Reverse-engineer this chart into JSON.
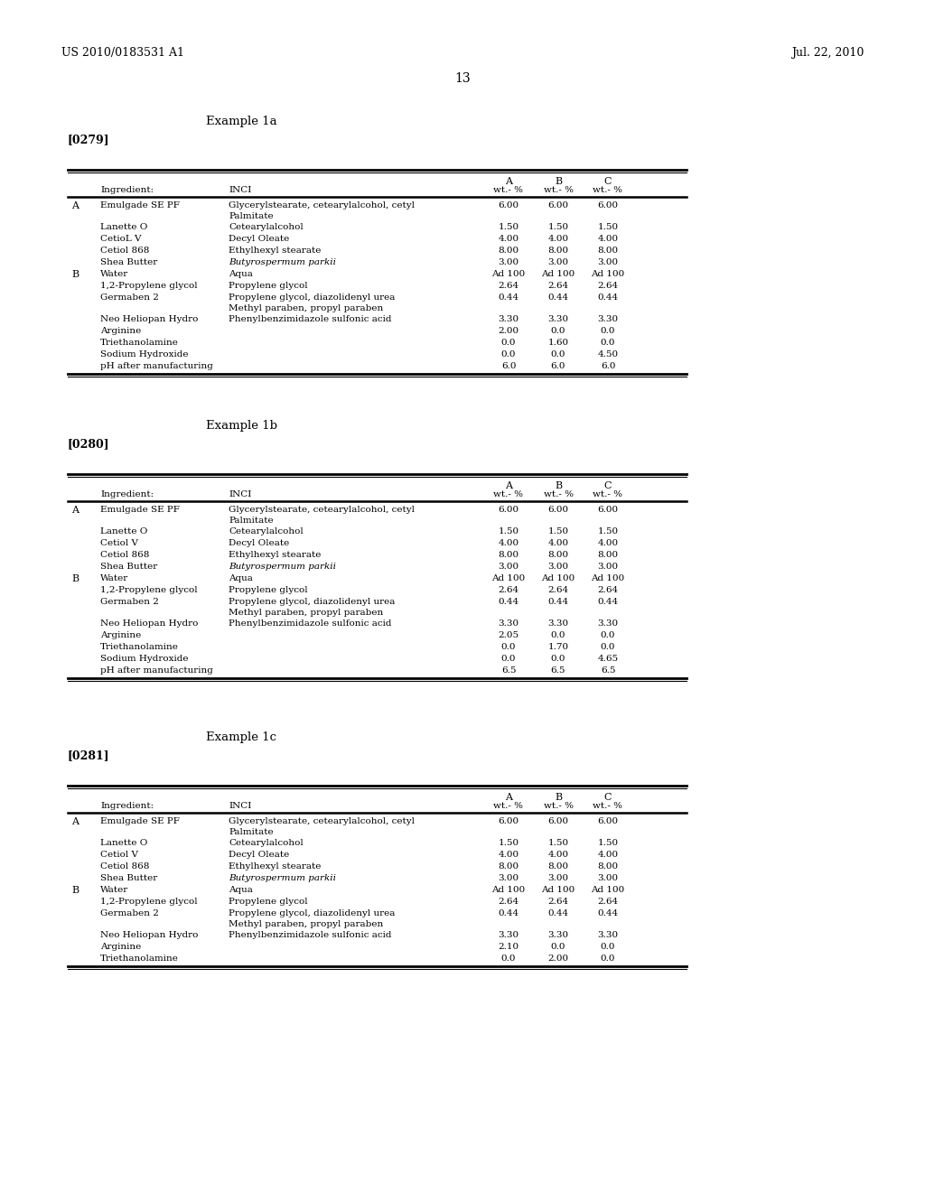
{
  "header_left": "US 2010/0183531 A1",
  "header_right": "Jul. 22, 2010",
  "page_number": "13",
  "examples": [
    {
      "title": "Example 1a",
      "ref": "[0279]",
      "rows": [
        {
          "phase": "A",
          "ingredient": "Emulgade SE PF",
          "inci": "Glycerylstearate, cetearylalcohol, cetyl",
          "inci2": "Palmitate",
          "italic": false,
          "A": "6.00",
          "B": "6.00",
          "C": "6.00"
        },
        {
          "phase": "",
          "ingredient": "Lanette O",
          "inci": "Cetearylalcohol",
          "inci2": "",
          "italic": false,
          "A": "1.50",
          "B": "1.50",
          "C": "1.50"
        },
        {
          "phase": "",
          "ingredient": "CetioL V",
          "inci": "Decyl Oleate",
          "inci2": "",
          "italic": false,
          "A": "4.00",
          "B": "4.00",
          "C": "4.00"
        },
        {
          "phase": "",
          "ingredient": "Cetiol 868",
          "inci": "Ethylhexyl stearate",
          "inci2": "",
          "italic": false,
          "A": "8.00",
          "B": "8.00",
          "C": "8.00"
        },
        {
          "phase": "",
          "ingredient": "Shea Butter",
          "inci": "Butyrospermum parkii",
          "inci2": "",
          "italic": true,
          "A": "3.00",
          "B": "3.00",
          "C": "3.00"
        },
        {
          "phase": "B",
          "ingredient": "Water",
          "inci": "Aqua",
          "inci2": "",
          "italic": false,
          "A": "Ad 100",
          "B": "Ad 100",
          "C": "Ad 100"
        },
        {
          "phase": "",
          "ingredient": "1,2-Propylene glycol",
          "inci": "Propylene glycol",
          "inci2": "",
          "italic": false,
          "A": "2.64",
          "B": "2.64",
          "C": "2.64"
        },
        {
          "phase": "",
          "ingredient": "Germaben 2",
          "inci": "Propylene glycol, diazolidenyl urea",
          "inci2": "Methyl paraben, propyl paraben",
          "italic": false,
          "A": "0.44",
          "B": "0.44",
          "C": "0.44"
        },
        {
          "phase": "",
          "ingredient": "Neo Heliopan Hydro",
          "inci": "Phenylbenzimidazole sulfonic acid",
          "inci2": "",
          "italic": false,
          "A": "3.30",
          "B": "3.30",
          "C": "3.30"
        },
        {
          "phase": "",
          "ingredient": "Arginine",
          "inci": "",
          "inci2": "",
          "italic": false,
          "A": "2.00",
          "B": "0.0",
          "C": "0.0"
        },
        {
          "phase": "",
          "ingredient": "Triethanolamine",
          "inci": "",
          "inci2": "",
          "italic": false,
          "A": "0.0",
          "B": "1.60",
          "C": "0.0"
        },
        {
          "phase": "",
          "ingredient": "Sodium Hydroxide",
          "inci": "",
          "inci2": "",
          "italic": false,
          "A": "0.0",
          "B": "0.0",
          "C": "4.50"
        },
        {
          "phase": "",
          "ingredient": "pH after manufacturing",
          "inci": "",
          "inci2": "",
          "italic": false,
          "A": "6.0",
          "B": "6.0",
          "C": "6.0"
        }
      ]
    },
    {
      "title": "Example 1b",
      "ref": "[0280]",
      "rows": [
        {
          "phase": "A",
          "ingredient": "Emulgade SE PF",
          "inci": "Glycerylstearate, cetearylalcohol, cetyl",
          "inci2": "Palmitate",
          "italic": false,
          "A": "6.00",
          "B": "6.00",
          "C": "6.00"
        },
        {
          "phase": "",
          "ingredient": "Lanette O",
          "inci": "Cetearylalcohol",
          "inci2": "",
          "italic": false,
          "A": "1.50",
          "B": "1.50",
          "C": "1.50"
        },
        {
          "phase": "",
          "ingredient": "Cetiol V",
          "inci": "Decyl Oleate",
          "inci2": "",
          "italic": false,
          "A": "4.00",
          "B": "4.00",
          "C": "4.00"
        },
        {
          "phase": "",
          "ingredient": "Cetiol 868",
          "inci": "Ethylhexyl stearate",
          "inci2": "",
          "italic": false,
          "A": "8.00",
          "B": "8.00",
          "C": "8.00"
        },
        {
          "phase": "",
          "ingredient": "Shea Butter",
          "inci": "Butyrospermum parkii",
          "inci2": "",
          "italic": true,
          "A": "3.00",
          "B": "3.00",
          "C": "3.00"
        },
        {
          "phase": "B",
          "ingredient": "Water",
          "inci": "Aqua",
          "inci2": "",
          "italic": false,
          "A": "Ad 100",
          "B": "Ad 100",
          "C": "Ad 100"
        },
        {
          "phase": "",
          "ingredient": "1,2-Propylene glycol",
          "inci": "Propylene glycol",
          "inci2": "",
          "italic": false,
          "A": "2.64",
          "B": "2.64",
          "C": "2.64"
        },
        {
          "phase": "",
          "ingredient": "Germaben 2",
          "inci": "Propylene glycol, diazolidenyl urea",
          "inci2": "Methyl paraben, propyl paraben",
          "italic": false,
          "A": "0.44",
          "B": "0.44",
          "C": "0.44"
        },
        {
          "phase": "",
          "ingredient": "Neo Heliopan Hydro",
          "inci": "Phenylbenzimidazole sulfonic acid",
          "inci2": "",
          "italic": false,
          "A": "3.30",
          "B": "3.30",
          "C": "3.30"
        },
        {
          "phase": "",
          "ingredient": "Arginine",
          "inci": "",
          "inci2": "",
          "italic": false,
          "A": "2.05",
          "B": "0.0",
          "C": "0.0"
        },
        {
          "phase": "",
          "ingredient": "Triethanolamine",
          "inci": "",
          "inci2": "",
          "italic": false,
          "A": "0.0",
          "B": "1.70",
          "C": "0.0"
        },
        {
          "phase": "",
          "ingredient": "Sodium Hydroxide",
          "inci": "",
          "inci2": "",
          "italic": false,
          "A": "0.0",
          "B": "0.0",
          "C": "4.65"
        },
        {
          "phase": "",
          "ingredient": "pH after manufacturing",
          "inci": "",
          "inci2": "",
          "italic": false,
          "A": "6.5",
          "B": "6.5",
          "C": "6.5"
        }
      ]
    },
    {
      "title": "Example 1c",
      "ref": "[0281]",
      "rows": [
        {
          "phase": "A",
          "ingredient": "Emulgade SE PF",
          "inci": "Glycerylstearate, cetearylalcohol, cetyl",
          "inci2": "Palmitate",
          "italic": false,
          "A": "6.00",
          "B": "6.00",
          "C": "6.00"
        },
        {
          "phase": "",
          "ingredient": "Lanette O",
          "inci": "Cetearylalcohol",
          "inci2": "",
          "italic": false,
          "A": "1.50",
          "B": "1.50",
          "C": "1.50"
        },
        {
          "phase": "",
          "ingredient": "Cetiol V",
          "inci": "Decyl Oleate",
          "inci2": "",
          "italic": false,
          "A": "4.00",
          "B": "4.00",
          "C": "4.00"
        },
        {
          "phase": "",
          "ingredient": "Cetiol 868",
          "inci": "Ethylhexyl stearate",
          "inci2": "",
          "italic": false,
          "A": "8.00",
          "B": "8.00",
          "C": "8.00"
        },
        {
          "phase": "",
          "ingredient": "Shea Butter",
          "inci": "Butyrospermum parkii",
          "inci2": "",
          "italic": true,
          "A": "3.00",
          "B": "3.00",
          "C": "3.00"
        },
        {
          "phase": "B",
          "ingredient": "Water",
          "inci": "Aqua",
          "inci2": "",
          "italic": false,
          "A": "Ad 100",
          "B": "Ad 100",
          "C": "Ad 100"
        },
        {
          "phase": "",
          "ingredient": "1,2-Propylene glycol",
          "inci": "Propylene glycol",
          "inci2": "",
          "italic": false,
          "A": "2.64",
          "B": "2.64",
          "C": "2.64"
        },
        {
          "phase": "",
          "ingredient": "Germaben 2",
          "inci": "Propylene glycol, diazolidenyl urea",
          "inci2": "Methyl paraben, propyl paraben",
          "italic": false,
          "A": "0.44",
          "B": "0.44",
          "C": "0.44"
        },
        {
          "phase": "",
          "ingredient": "Neo Heliopan Hydro",
          "inci": "Phenylbenzimidazole sulfonic acid",
          "inci2": "",
          "italic": false,
          "A": "3.30",
          "B": "3.30",
          "C": "3.30"
        },
        {
          "phase": "",
          "ingredient": "Arginine",
          "inci": "",
          "inci2": "",
          "italic": false,
          "A": "2.10",
          "B": "0.0",
          "C": "0.0"
        },
        {
          "phase": "",
          "ingredient": "Triethanolamine",
          "inci": "",
          "inci2": "",
          "italic": false,
          "A": "0.0",
          "B": "2.00",
          "C": "0.0"
        }
      ]
    }
  ]
}
